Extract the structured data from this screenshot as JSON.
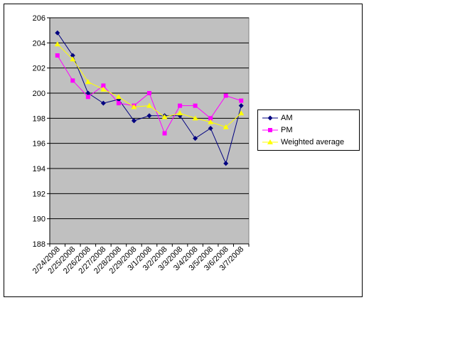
{
  "chart_data": {
    "type": "line",
    "categories": [
      "2/24/2008",
      "2/25/2008",
      "2/26/2008",
      "2/27/2008",
      "2/28/2008",
      "2/29/2008",
      "3/1/2008",
      "3/2/2008",
      "3/3/2008",
      "3/4/2008",
      "3/5/2008",
      "3/6/2008",
      "3/7/2008"
    ],
    "ylim": [
      188,
      206
    ],
    "yticks": [
      188,
      190,
      192,
      194,
      196,
      198,
      200,
      202,
      204,
      206
    ],
    "grid": true,
    "plot_background": "#c0c0c0",
    "legend_position": "right",
    "series": [
      {
        "name": "AM",
        "color": "#000080",
        "marker": "diamond",
        "values": [
          204.8,
          203.0,
          200.0,
          199.2,
          199.5,
          197.8,
          198.2,
          198.2,
          198.2,
          196.4,
          197.2,
          194.4,
          199.0
        ]
      },
      {
        "name": "PM",
        "color": "#ff00ff",
        "marker": "square",
        "values": [
          203.0,
          201.0,
          199.7,
          200.6,
          199.2,
          199.0,
          200.0,
          196.8,
          199.0,
          199.0,
          198.0,
          199.8,
          199.4
        ]
      },
      {
        "name": "Weighted average",
        "color": "#ffff00",
        "marker": "triangle",
        "values": [
          203.9,
          202.7,
          200.9,
          200.3,
          199.7,
          198.9,
          199.0,
          198.1,
          198.4,
          198.0,
          197.7,
          197.3,
          198.4
        ]
      }
    ]
  }
}
